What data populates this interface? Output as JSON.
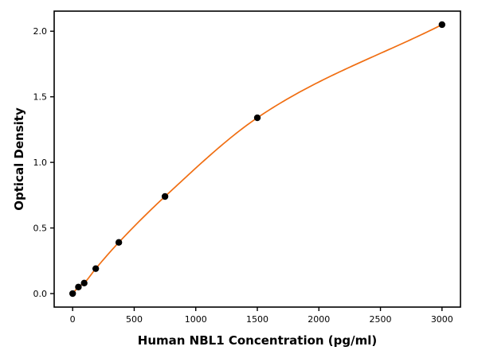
{
  "figure": {
    "background": "#ffffff",
    "axis_color": "#000000",
    "tick_label_color": "#000000"
  },
  "chart_data": {
    "type": "scatter",
    "title": "",
    "xlabel": "Human NBL1 Concentration (pg/ml)",
    "ylabel": "Optical Density",
    "x": [
      0,
      46.9,
      93.8,
      187.5,
      375,
      750,
      1500,
      3000
    ],
    "y": [
      0.0,
      0.05,
      0.08,
      0.19,
      0.39,
      0.74,
      1.34,
      2.05
    ],
    "series": [
      {
        "name": "standards-points",
        "type": "scatter"
      },
      {
        "name": "fitted-curve",
        "type": "line"
      }
    ],
    "xlim": [
      -150,
      3150
    ],
    "ylim": [
      -0.103,
      2.153
    ],
    "xticks": [
      0,
      500,
      1000,
      1500,
      2000,
      2500,
      3000
    ],
    "xtick_labels": [
      "0",
      "500",
      "1000",
      "1500",
      "2000",
      "2500",
      "3000"
    ],
    "yticks": [
      0,
      0.5,
      1.0,
      1.5,
      2.0
    ],
    "ytick_labels": [
      "0.0",
      "0.5",
      "1.0",
      "1.5",
      "2.0"
    ],
    "grid": false,
    "legend": false,
    "line_color": "#f06e12",
    "marker_color": "#000000"
  }
}
